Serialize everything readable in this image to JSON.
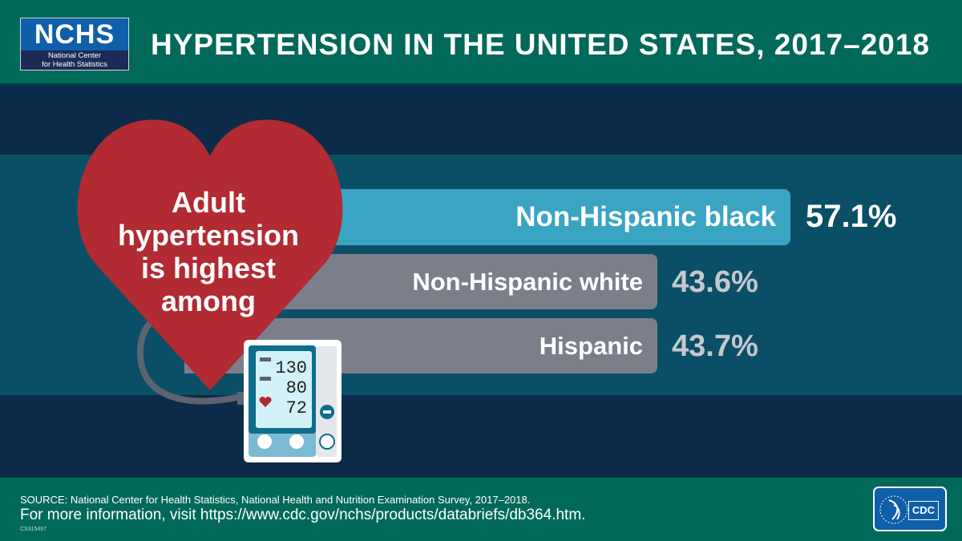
{
  "header": {
    "logo_abbr": "NCHS",
    "logo_line1": "National Center",
    "logo_line2": "for Health Statistics",
    "title": "HYPERTENSION IN THE UNITED STATES, 2017–2018"
  },
  "heart_text": [
    "Adult",
    "hypertension",
    "is highest",
    "among"
  ],
  "monitor": {
    "systolic": "130",
    "diastolic": "80",
    "pulse": "72"
  },
  "chart_data": {
    "type": "bar",
    "title": "Adult hypertension is highest among",
    "categories": [
      "Non-Hispanic black",
      "Non-Hispanic white",
      "Hispanic"
    ],
    "values": [
      57.1,
      43.6,
      43.7
    ],
    "labels": [
      "57.1%",
      "43.6%",
      "43.7%"
    ],
    "unit": "%",
    "colors": [
      "#3aa4c3",
      "#7b7f8a",
      "#7b7f8a"
    ]
  },
  "footer": {
    "source": "SOURCE: National Center for Health Statistics, National Health and Nutrition Examination Survey, 2017–2018.",
    "info": "For more information, visit https://www.cdc.gov/nchs/products/databriefs/db364.htm.",
    "code": "CS315497",
    "cdc_logo": "CDC"
  }
}
